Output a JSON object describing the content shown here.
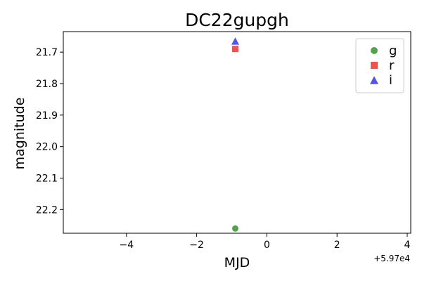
{
  "chart_data": {
    "type": "scatter",
    "title": "DC22gupgh",
    "xlabel": "MJD",
    "ylabel": "magnitude",
    "x_offset_label": "+5.97e4",
    "xlim": [
      -5.8,
      4.1
    ],
    "ylim": [
      22.275,
      21.635
    ],
    "y_inverted": true,
    "xticks": [
      -4,
      -2,
      0,
      2,
      4
    ],
    "xtick_labels": [
      "−4",
      "−2",
      "0",
      "2",
      "4"
    ],
    "yticks": [
      21.7,
      21.8,
      21.9,
      22.0,
      22.1,
      22.2
    ],
    "ytick_labels": [
      "21.7",
      "21.8",
      "21.9",
      "22.0",
      "22.1",
      "22.2"
    ],
    "grid": false,
    "legend_position": "top-right",
    "series": [
      {
        "name": "g",
        "marker": "circle",
        "color": "#4a9e44",
        "points": [
          {
            "x": -0.9,
            "y": 22.26
          }
        ]
      },
      {
        "name": "r",
        "marker": "square",
        "color": "#ef4848",
        "points": [
          {
            "x": -0.9,
            "y": 21.69
          }
        ]
      },
      {
        "name": "i",
        "marker": "triangle",
        "color": "#4a4af0",
        "points": [
          {
            "x": -0.9,
            "y": 21.665
          }
        ]
      }
    ]
  }
}
